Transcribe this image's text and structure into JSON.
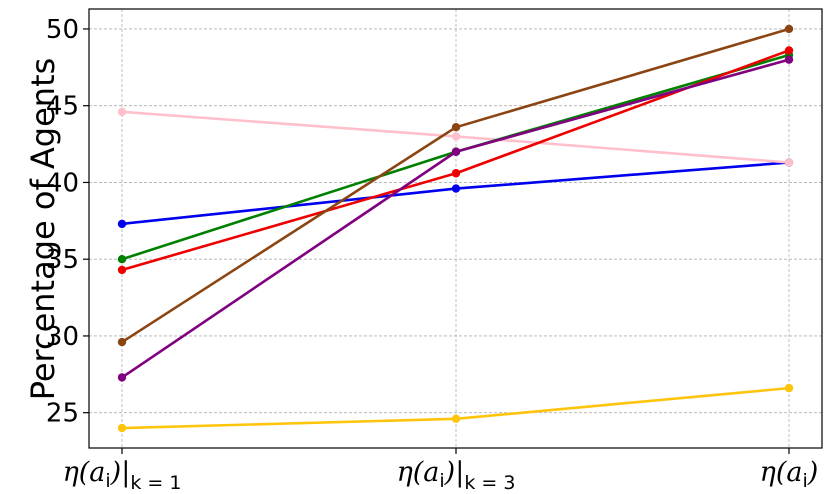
{
  "chart_data": {
    "type": "line",
    "ylabel": "Percentage of Agents",
    "categories": [
      {
        "base": "η(a",
        "sub": "i",
        "close": ")",
        "cond": "|",
        "cond_sub": "k = 1"
      },
      {
        "base": "η(a",
        "sub": "i",
        "close": ")",
        "cond": "|",
        "cond_sub": "k = 3"
      },
      {
        "base": "η(a",
        "sub": "i",
        "close": ")",
        "cond": "",
        "cond_sub": ""
      }
    ],
    "ylim": [
      22.7,
      51.3
    ],
    "yticks": [
      25,
      30,
      35,
      40,
      45,
      50
    ],
    "grid": true,
    "legend": "none",
    "series": [
      {
        "color": "#0000ee",
        "values": [
          37.3,
          39.6,
          41.3
        ]
      },
      {
        "color": "#ffc0cb",
        "values": [
          44.6,
          43.0,
          41.3
        ]
      },
      {
        "color": "#008000",
        "values": [
          35.0,
          42.0,
          48.3
        ]
      },
      {
        "color": "#ee0000",
        "values": [
          34.3,
          40.6,
          48.6
        ]
      },
      {
        "color": "#8b4513",
        "values": [
          29.6,
          43.6,
          50.0
        ]
      },
      {
        "color": "#800080",
        "values": [
          27.3,
          42.0,
          48.0
        ]
      },
      {
        "color": "#ffc40c",
        "values": [
          24.0,
          24.6,
          26.6
        ]
      }
    ]
  }
}
